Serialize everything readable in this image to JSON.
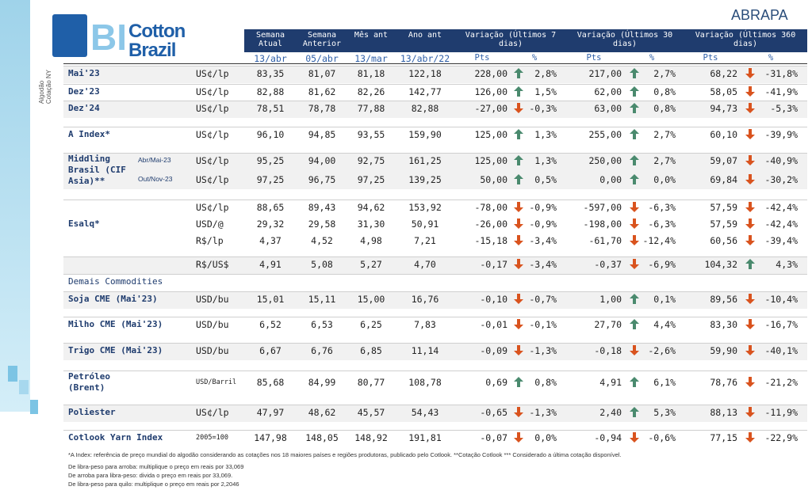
{
  "header": {
    "logo_bi": "BI",
    "logo_cotton": "Cotton",
    "logo_brazil": "Brazil",
    "brand": "ABRAPA",
    "side_1": "Algodão",
    "side_2": "Cotação NY"
  },
  "columns": [
    "Semana Atual",
    "Semana Anterior",
    "Mês ant",
    "Ano ant"
  ],
  "variations": [
    "Variação (Últimos 7 dias)",
    "Variação (Últimos 30 dias)",
    "Variação (Últimos 360 dias)"
  ],
  "sub_headers": [
    "Pts",
    "%",
    "Pts",
    "%",
    "Pts",
    "%"
  ],
  "dates": [
    "13/abr",
    "05/abr",
    "13/mar",
    "13/abr/22"
  ],
  "groups": [
    {
      "label": "Mai'23",
      "rows": [
        {
          "unit": "US¢/lp",
          "cells": [
            "83,35",
            "81,07",
            "81,18",
            "122,18",
            "228,00",
            "2,8%",
            "217,00",
            "2,7%",
            "68,22",
            "-31,8%"
          ]
        }
      ]
    },
    {
      "label": "Dez'23",
      "rows": [
        {
          "unit": "US¢/lp",
          "cells": [
            "82,88",
            "81,62",
            "82,26",
            "142,77",
            "126,00",
            "1,5%",
            "62,00",
            "0,8%",
            "58,05",
            "-41,9%"
          ]
        }
      ]
    },
    {
      "label": "Dez'24",
      "rows": [
        {
          "unit": "US¢/lp",
          "cells": [
            "78,51",
            "78,78",
            "77,88",
            "82,88",
            "-27,00",
            "-0,3%",
            "63,00",
            "0,8%",
            "94,73",
            "-5,3%"
          ]
        }
      ]
    },
    {
      "label": "A Index*",
      "rows": [
        {
          "unit": "US¢/lp",
          "cells": [
            "96,10",
            "94,85",
            "93,55",
            "159,90",
            "125,00",
            "1,3%",
            "255,00",
            "2,7%",
            "60,10",
            "-39,9%"
          ]
        }
      ]
    },
    {
      "label": "Middling Brasil (CIF Asia)**",
      "rows": [
        {
          "sub": "Abr/Mai-23",
          "unit": "US¢/lp",
          "cells": [
            "95,25",
            "94,00",
            "92,75",
            "161,25",
            "125,00",
            "1,3%",
            "250,00",
            "2,7%",
            "59,07",
            "-40,9%"
          ]
        },
        {
          "sub": "Out/Nov-23",
          "unit": "US¢/lp",
          "cells": [
            "97,25",
            "96,75",
            "97,25",
            "139,25",
            "50,00",
            "0,5%",
            "0,00",
            "0,0%",
            "69,84",
            "-30,2%"
          ]
        }
      ]
    },
    {
      "label": "Esalq*",
      "rows": [
        {
          "unit": "US¢/lp",
          "cells": [
            "88,65",
            "89,43",
            "94,62",
            "153,92",
            "-78,00",
            "-0,9%",
            "-597,00",
            "-6,3%",
            "57,59",
            "-42,4%"
          ]
        },
        {
          "unit": "USD/@",
          "cells": [
            "29,32",
            "29,58",
            "31,30",
            "50,91",
            "-26,00",
            "-0,9%",
            "-198,00",
            "-6,3%",
            "57,59",
            "-42,4%"
          ]
        },
        {
          "unit": "R$/lp",
          "cells": [
            "4,37",
            "4,52",
            "4,98",
            "7,21",
            "-15,18",
            "-3,4%",
            "-61,70",
            "-12,4%",
            "60,56",
            "-39,4%"
          ]
        }
      ]
    },
    {
      "rows": [
        {
          "unit": "R$/US$",
          "cells": [
            "4,91",
            "5,08",
            "5,27",
            "4,70",
            "-0,17",
            "-3,4%",
            "-0,37",
            "-6,9%",
            "104,32",
            "4,3%"
          ]
        }
      ]
    },
    {
      "label": "Demais Commodities",
      "rows": []
    },
    {
      "label": "Soja CME (Mai'23)",
      "rows": [
        {
          "unit": "USD/bu",
          "cells": [
            "15,01",
            "15,11",
            "15,00",
            "16,76",
            "-0,10",
            "-0,7%",
            "1,00",
            "0,1%",
            "89,56",
            "-10,4%"
          ]
        }
      ]
    },
    {
      "label": "Milho CME (Mai'23)",
      "rows": [
        {
          "unit": "USD/bu",
          "cells": [
            "6,52",
            "6,53",
            "6,25",
            "7,83",
            "-0,01",
            "-0,1%",
            "27,70",
            "4,4%",
            "83,30",
            "-16,7%"
          ]
        }
      ]
    },
    {
      "label": "Trigo CME (Mai'23)",
      "rows": [
        {
          "unit": "USD/bu",
          "cells": [
            "6,67",
            "6,76",
            "6,85",
            "11,14",
            "-0,09",
            "-1,3%",
            "-0,18",
            "-2,6%",
            "59,90",
            "-40,1%"
          ]
        }
      ]
    },
    {
      "label": "Petróleo (Brent)",
      "rows": [
        {
          "unit": "USD/Barril",
          "cells": [
            "85,68",
            "84,99",
            "80,77",
            "108,78",
            "0,69",
            "0,8%",
            "4,91",
            "6,1%",
            "78,76",
            "-21,2%"
          ]
        }
      ]
    },
    {
      "label": "Poliester",
      "rows": [
        {
          "unit": "US¢/lp",
          "cells": [
            "47,97",
            "48,62",
            "45,57",
            "54,43",
            "-0,65",
            "-1,3%",
            "2,40",
            "5,3%",
            "88,13",
            "-11,9%"
          ]
        }
      ]
    },
    {
      "label": "Cotlook Yarn Index",
      "rows": [
        {
          "unit": "2005=100",
          "cells": [
            "147,98",
            "148,05",
            "148,92",
            "191,81",
            "-0,07",
            "0,0%",
            "-0,94",
            "-0,6%",
            "77,15",
            "-22,9%"
          ]
        }
      ]
    }
  ],
  "notes": [
    "*A Index: referência de preço mundial do algodão considerando as cotações nos 18 maiores países e regiões produtoras, publicado pelo Cotlook. **Cotação Cotlook *** Considerado a última cotação disponível.",
    "De libra-peso para arroba: multiplique o preço em reais por 33,069",
    "De arroba para libra-peso: divida o preço em reais por 33,069.",
    "De libra-peso para quilo: multiplique o preço em reais por 2,2046"
  ]
}
